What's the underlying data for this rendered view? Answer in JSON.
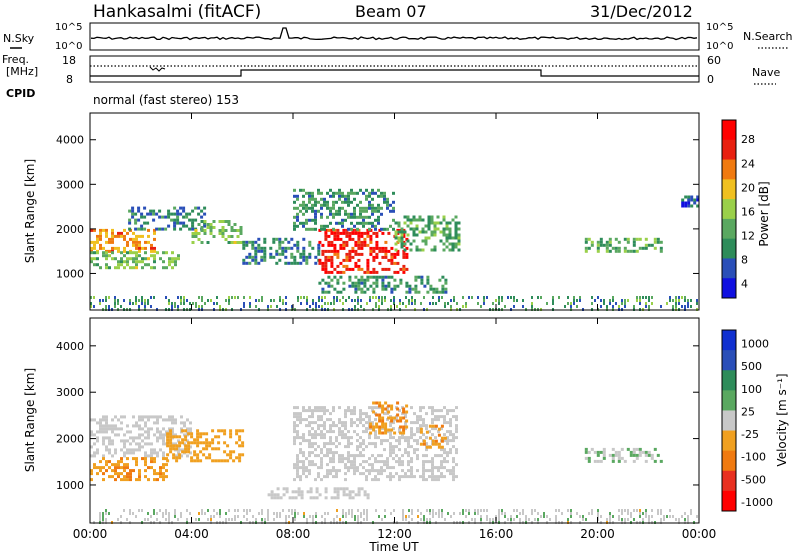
{
  "header": {
    "station": "Hankasalmi (fitACF)",
    "beam": "Beam 07",
    "date": "31/Dec/2012"
  },
  "noise_panel": {
    "left_label": "N.Sky",
    "right_label": "N.Search",
    "left_ticks": [
      "10^5",
      "10^0"
    ],
    "right_ticks": [
      "10^5",
      "10^0"
    ]
  },
  "freq_panel": {
    "left_label_1": "Freq.",
    "left_label_2": "[MHz]",
    "left_ticks": [
      "18",
      "8"
    ],
    "right_label": "Nave",
    "right_ticks": [
      "60",
      "0"
    ]
  },
  "cpid": {
    "label": "CPID",
    "program": "normal (fast stereo) 153"
  },
  "power_panel": {
    "ylabel": "Slant Range [km]",
    "yticks": [
      "1000",
      "2000",
      "3000",
      "4000"
    ],
    "colorbar_label": "Power [dB]",
    "colorbar_ticks": [
      "4",
      "8",
      "12",
      "16",
      "20",
      "24",
      "28"
    ]
  },
  "velocity_panel": {
    "ylabel": "Slant Range [km]",
    "yticks": [
      "1000",
      "2000",
      "3000",
      "4000"
    ],
    "colorbar_label": "Velocity [m s⁻¹]",
    "colorbar_ticks": [
      "1000",
      "500",
      "100",
      "25",
      "-25",
      "-100",
      "-500",
      "-1000"
    ]
  },
  "xaxis": {
    "ticks": [
      "00:00",
      "04:00",
      "08:00",
      "12:00",
      "16:00",
      "20:00",
      "00:00"
    ],
    "label": "Time UT"
  },
  "colors": {
    "power_scale": [
      "#1010e0",
      "#2a4fb8",
      "#2e8c5a",
      "#5aa860",
      "#9ad04a",
      "#f0c020",
      "#f07a10",
      "#e82010",
      "#ff0000"
    ],
    "velocity_scale": [
      "#1030d0",
      "#2a4fb8",
      "#2e8c5a",
      "#5aa860",
      "#c8c8c8",
      "#f0a020",
      "#f07a10",
      "#e83020",
      "#ff0000"
    ]
  },
  "chart_data": [
    {
      "type": "heatmap",
      "title": "Power",
      "xlabel": "Time UT",
      "ylabel": "Slant Range [km]",
      "xlim": [
        0,
        24
      ],
      "ylim": [
        180,
        4600
      ],
      "zlabel": "Power [dB]",
      "zlim": [
        0,
        32
      ],
      "patches": [
        {
          "t0": 0.0,
          "t1": 2.5,
          "r0": 1500,
          "r1": 2000,
          "z": 22
        },
        {
          "t0": 0.0,
          "t1": 3.5,
          "r0": 1100,
          "r1": 1500,
          "z": 14
        },
        {
          "t0": 1.5,
          "t1": 4.5,
          "r0": 2000,
          "r1": 2500,
          "z": 8
        },
        {
          "t0": 4.0,
          "t1": 6.0,
          "r0": 1700,
          "r1": 2200,
          "z": 14
        },
        {
          "t0": 6.0,
          "t1": 9.0,
          "r0": 1200,
          "r1": 1800,
          "z": 8
        },
        {
          "t0": 9.0,
          "t1": 12.5,
          "r0": 1000,
          "r1": 2000,
          "z": 28
        },
        {
          "t0": 8.0,
          "t1": 12.0,
          "r0": 2000,
          "r1": 2900,
          "z": 10
        },
        {
          "t0": 12.0,
          "t1": 14.5,
          "r0": 1500,
          "r1": 2300,
          "z": 12
        },
        {
          "t0": 9.0,
          "t1": 14.0,
          "r0": 600,
          "r1": 950,
          "z": 10
        },
        {
          "t0": 19.5,
          "t1": 22.5,
          "r0": 1500,
          "r1": 1800,
          "z": 12
        },
        {
          "t0": 23.3,
          "t1": 24.0,
          "r0": 2500,
          "r1": 2750,
          "z": 6
        }
      ]
    },
    {
      "type": "heatmap",
      "title": "Velocity",
      "xlabel": "Time UT",
      "ylabel": "Slant Range [km]",
      "xlim": [
        0,
        24
      ],
      "ylim": [
        180,
        4600
      ],
      "zlabel": "Velocity [m s-1]",
      "zlim": [
        -1000,
        1000
      ],
      "patches": [
        {
          "t0": 0.0,
          "t1": 4.0,
          "r0": 1600,
          "r1": 2500,
          "z": 0
        },
        {
          "t0": 0.0,
          "t1": 3.0,
          "r0": 1100,
          "r1": 1600,
          "z": -300
        },
        {
          "t0": 3.0,
          "t1": 6.0,
          "r0": 1500,
          "r1": 2200,
          "z": -200
        },
        {
          "t0": 8.0,
          "t1": 14.5,
          "r0": 1100,
          "r1": 2700,
          "z": 0
        },
        {
          "t0": 11.0,
          "t1": 12.5,
          "r0": 2100,
          "r1": 2800,
          "z": -300
        },
        {
          "t0": 13.0,
          "t1": 14.0,
          "r0": 1800,
          "r1": 2300,
          "z": -300
        },
        {
          "t0": 7.0,
          "t1": 11.0,
          "r0": 700,
          "r1": 950,
          "z": 0
        },
        {
          "t0": 19.5,
          "t1": 22.5,
          "r0": 1500,
          "r1": 1800,
          "z": 100
        }
      ]
    }
  ]
}
